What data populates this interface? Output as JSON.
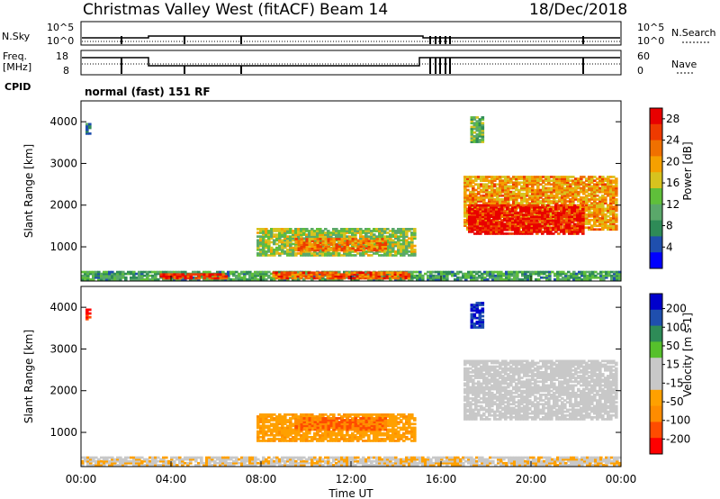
{
  "header": {
    "site": "Christmas Valley West (fitACF)",
    "beam": "Beam 14",
    "date": "18/Dec/2018"
  },
  "left_labels": {
    "nsky": "N.Sky",
    "freq_line1": "Freq.",
    "freq_line2": "[MHz]",
    "cpid": "CPID"
  },
  "right_labels": {
    "nsearch": "N.Search",
    "nave": "Nave"
  },
  "cpid_text": "normal (fast) 151 RF",
  "noise_axis": {
    "top": "10^5",
    "bottom": "10^0"
  },
  "freq_axis": {
    "top": "18",
    "bottom": "8"
  },
  "nave_axis": {
    "top": "60",
    "bottom": "0"
  },
  "colors": {
    "power_scale": [
      "#0000ff",
      "#1f4fae",
      "#2e8b57",
      "#5aa86a",
      "#5fbf3a",
      "#d7c31e",
      "#f5a000",
      "#f07000",
      "#ee3a00",
      "#e80000"
    ],
    "velocity_scale": [
      "#ff0000",
      "#ff4c00",
      "#ff8c00",
      "#ffa000",
      "#c8c8c8",
      "#c8c8c8",
      "#56c02c",
      "#2e8b57",
      "#1f4fae",
      "#0000cc"
    ],
    "ground_scatter": "#c8c8c8"
  },
  "chart_data": [
    {
      "type": "heatmap",
      "title": "Power",
      "ylabel": "Slant Range [km]",
      "xlabel": "",
      "xlim": [
        "00:00",
        "00:00"
      ],
      "ylim": [
        180,
        4500
      ],
      "yticks": [
        "1000",
        "2000",
        "3000",
        "4000"
      ],
      "colorbar": {
        "label": "Power [dB]",
        "ticks": [
          "4",
          "8",
          "12",
          "16",
          "20",
          "24",
          "28"
        ],
        "range": [
          0,
          30
        ]
      },
      "patches": [
        {
          "t0": 0.0,
          "t1": 24.0,
          "r0": 200,
          "r1": 400,
          "value": 10
        },
        {
          "t0": 3.5,
          "t1": 6.5,
          "r0": 230,
          "r1": 360,
          "value": 26
        },
        {
          "t0": 8.5,
          "t1": 14.5,
          "r0": 230,
          "r1": 380,
          "value": 24
        },
        {
          "t0": 7.8,
          "t1": 14.8,
          "r0": 780,
          "r1": 1450,
          "value": 14
        },
        {
          "t0": 9.5,
          "t1": 13.5,
          "r0": 900,
          "r1": 1200,
          "value": 22
        },
        {
          "t0": 17.0,
          "t1": 23.8,
          "r0": 1400,
          "r1": 2700,
          "value": 20
        },
        {
          "t0": 17.2,
          "t1": 22.3,
          "r0": 1300,
          "r1": 2000,
          "value": 28
        },
        {
          "t0": 17.3,
          "t1": 17.8,
          "r0": 3500,
          "r1": 4100,
          "value": 12
        },
        {
          "t0": 0.2,
          "t1": 0.35,
          "r0": 3700,
          "r1": 3950,
          "value": 8
        }
      ]
    },
    {
      "type": "heatmap",
      "title": "Velocity",
      "ylabel": "Slant Range [km]",
      "xlabel": "Time UT",
      "xticks": [
        "00:00",
        "04:00",
        "08:00",
        "12:00",
        "16:00",
        "20:00",
        "00:00"
      ],
      "ylim": [
        180,
        4500
      ],
      "yticks": [
        "1000",
        "2000",
        "3000",
        "4000"
      ],
      "colorbar": {
        "label": "Velocity [m s-1]",
        "ticks": [
          "200",
          "100",
          "50",
          "15",
          "-15",
          "-50",
          "-100",
          "-200"
        ],
        "range": [
          -250,
          250
        ]
      },
      "patches": [
        {
          "t0": 0.0,
          "t1": 24.0,
          "r0": 200,
          "r1": 400,
          "value": -40
        },
        {
          "t0": 7.8,
          "t1": 14.8,
          "r0": 780,
          "r1": 1450,
          "value": -80
        },
        {
          "t0": 9.5,
          "t1": 13.5,
          "r0": 1050,
          "r1": 1350,
          "value": -150
        },
        {
          "t0": 17.0,
          "t1": 23.8,
          "r0": 1300,
          "r1": 2700,
          "value": 0
        },
        {
          "t0": 17.3,
          "t1": 17.8,
          "r0": 3500,
          "r1": 4100,
          "value": 200
        },
        {
          "t0": 0.2,
          "t1": 0.35,
          "r0": 3700,
          "r1": 3950,
          "value": -200
        }
      ]
    }
  ]
}
